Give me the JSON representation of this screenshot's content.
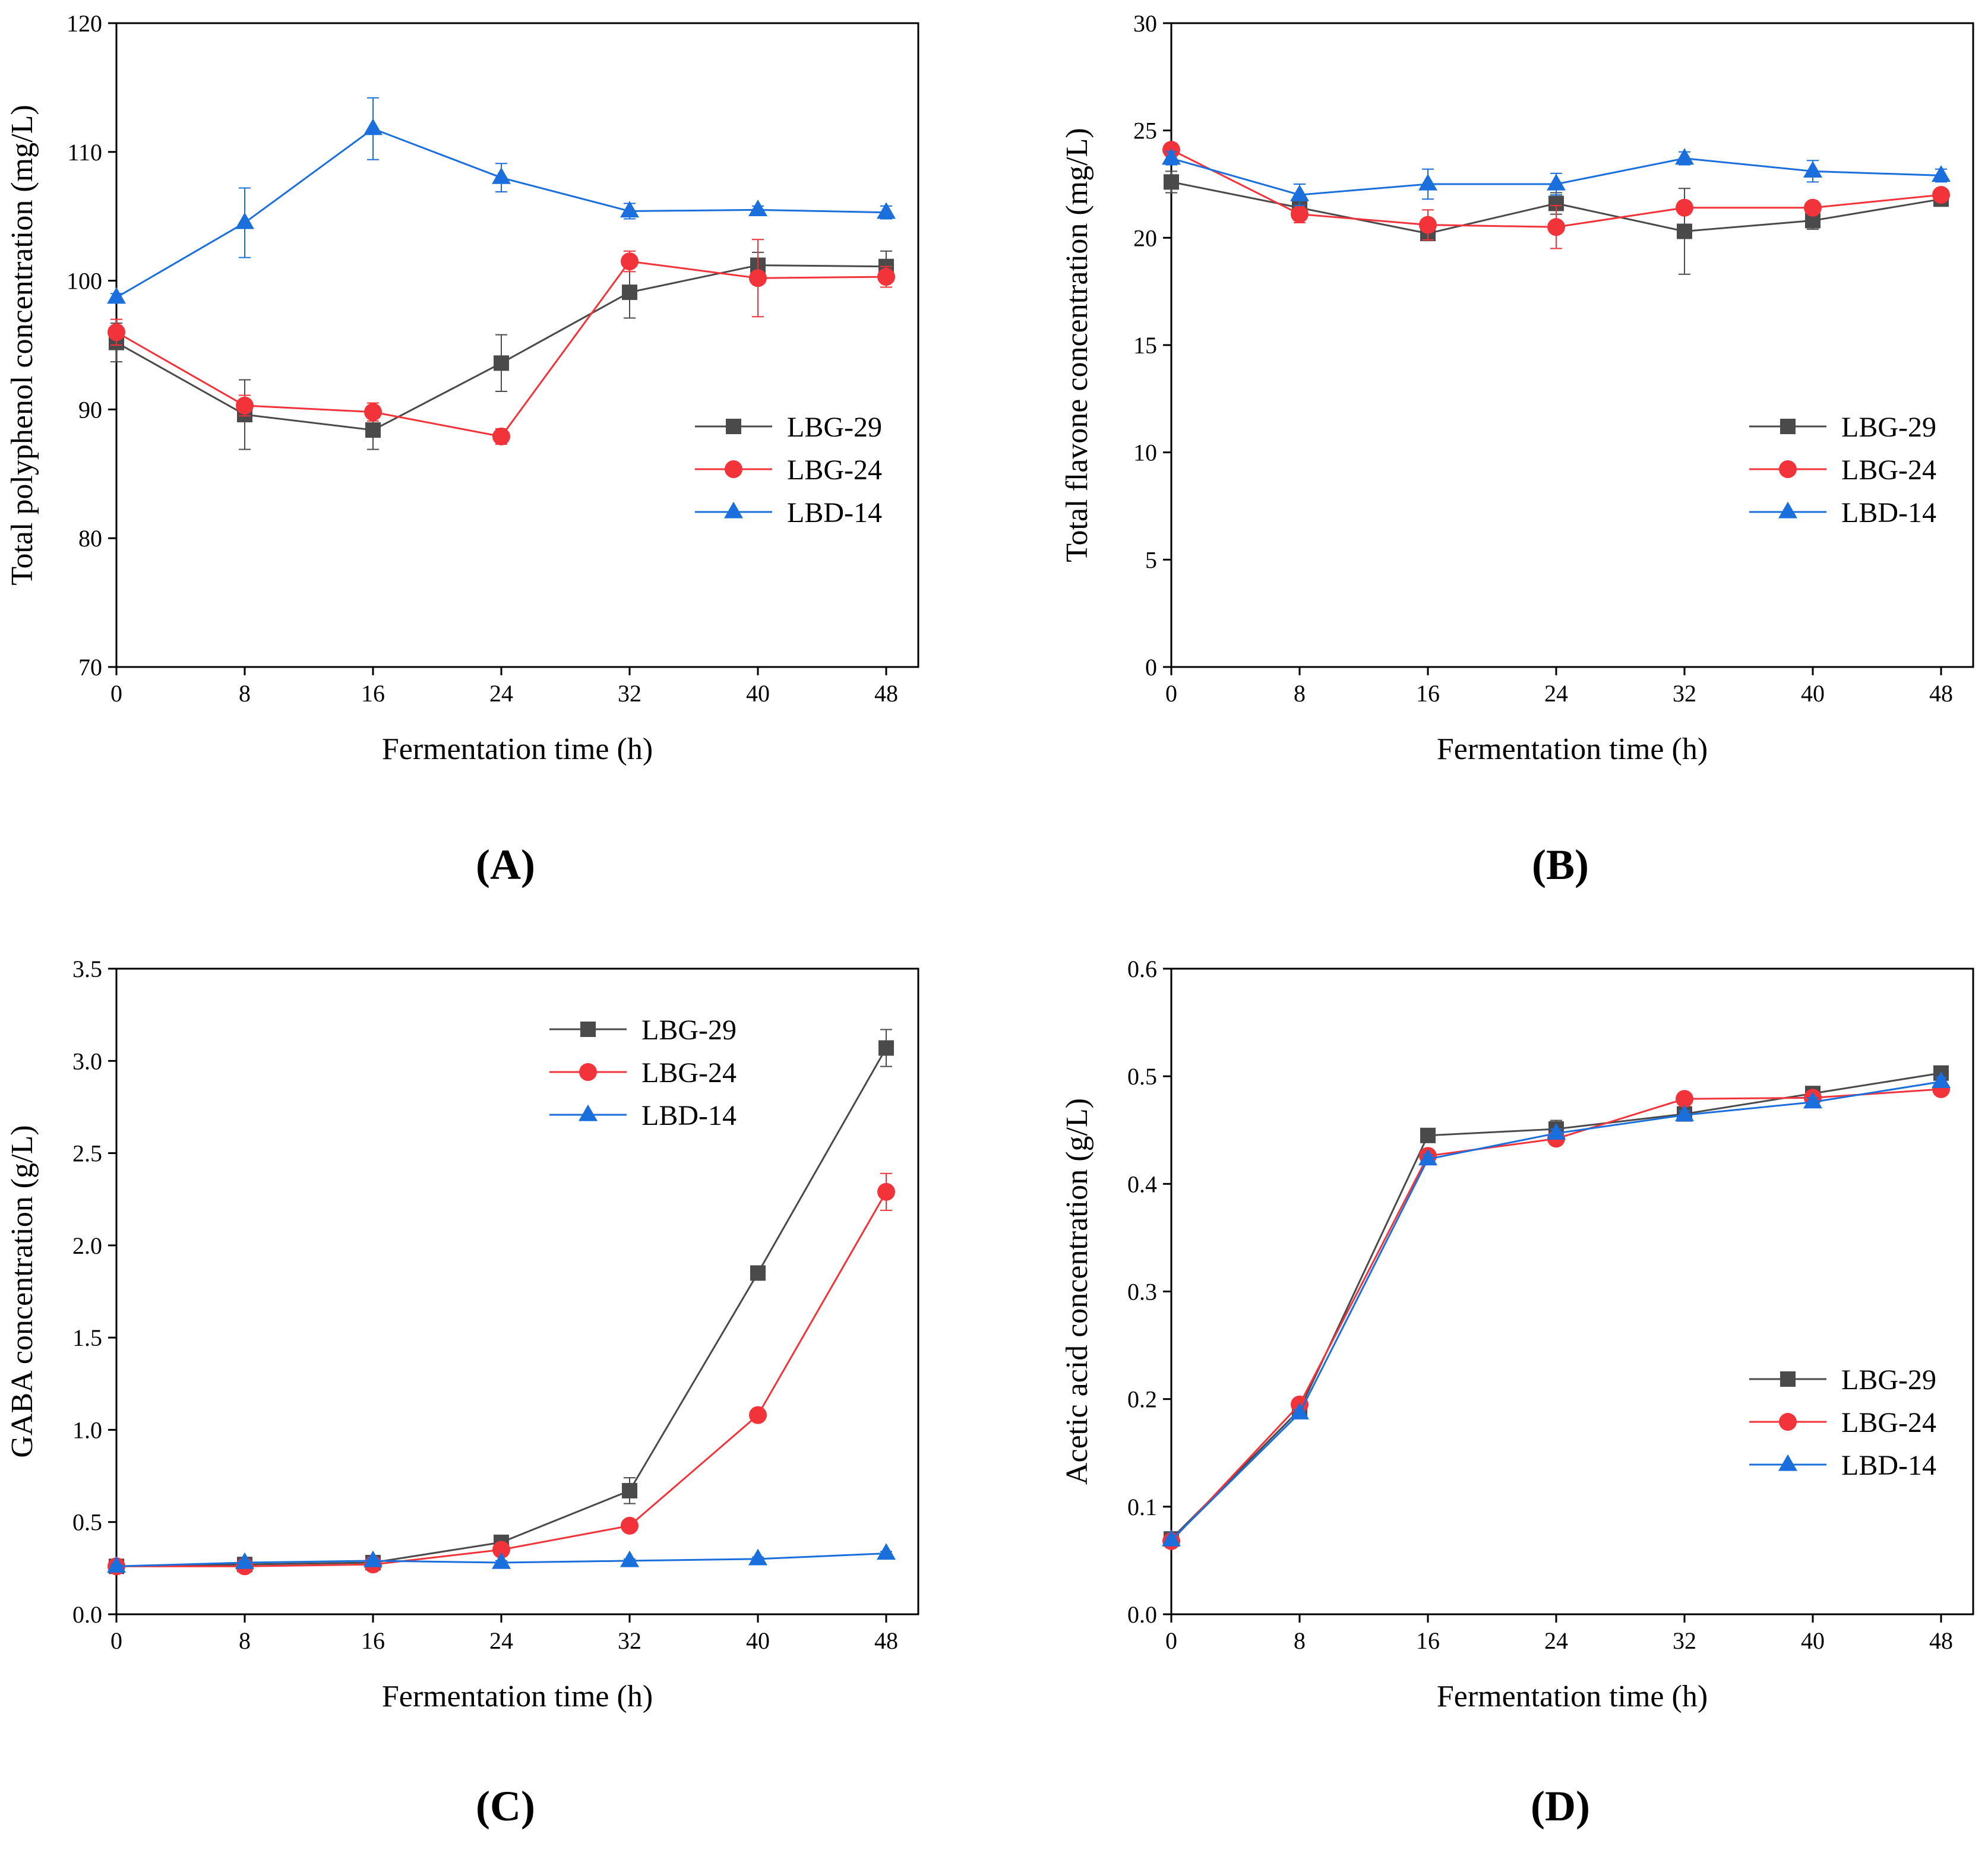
{
  "colors": {
    "LBG-29": "#4a4a4a",
    "LBG-24": "#f2333a",
    "LBD-14": "#1a6fdc",
    "axis": "#000000"
  },
  "chart_data": [
    {
      "panel": "(A)",
      "type": "line",
      "x": [
        0,
        8,
        16,
        24,
        32,
        40,
        48
      ],
      "xticks": [
        "0",
        "8",
        "16",
        "24",
        "32",
        "40",
        "48"
      ],
      "xlim": [
        0,
        50
      ],
      "ylim": [
        70,
        120
      ],
      "yticks": [
        70,
        80,
        90,
        100,
        110,
        120
      ],
      "xlabel": "Fermentation time (h)",
      "ylabel": "Total polyphenol concentration (mg/L)",
      "legend": "right",
      "series": [
        {
          "name": "LBG-29",
          "marker": "square",
          "values": [
            95.2,
            89.6,
            88.4,
            93.6,
            99.1,
            101.2,
            101.1
          ],
          "errors": [
            1.5,
            2.7,
            1.5,
            2.2,
            2.0,
            1.0,
            1.2
          ]
        },
        {
          "name": "LBG-24",
          "marker": "circle",
          "values": [
            96.0,
            90.3,
            89.8,
            87.9,
            101.5,
            100.2,
            100.3
          ],
          "errors": [
            1.0,
            0.8,
            0.7,
            0.6,
            0.8,
            3.0,
            0.8
          ]
        },
        {
          "name": "LBD-14",
          "marker": "triangle",
          "values": [
            98.7,
            104.5,
            111.8,
            108.0,
            105.4,
            105.5,
            105.3
          ],
          "errors": [
            0.3,
            2.7,
            2.4,
            1.1,
            0.6,
            0.3,
            0.5
          ]
        }
      ]
    },
    {
      "panel": "(B)",
      "type": "line",
      "x": [
        0,
        8,
        16,
        24,
        32,
        40,
        48
      ],
      "xticks": [
        "0",
        "8",
        "16",
        "24",
        "32",
        "40",
        "48"
      ],
      "xlim": [
        0,
        50
      ],
      "ylim": [
        0,
        30
      ],
      "yticks": [
        0,
        5,
        10,
        15,
        20,
        25,
        30
      ],
      "xlabel": "Fermentation time (h)",
      "ylabel": "Total flavone concentration (mg/L)",
      "legend": "right",
      "series": [
        {
          "name": "LBG-29",
          "marker": "square",
          "values": [
            22.6,
            21.4,
            20.2,
            21.6,
            20.3,
            20.8,
            21.8
          ],
          "errors": [
            0.5,
            0.5,
            0.3,
            0.5,
            2.0,
            0.4,
            0.2
          ]
        },
        {
          "name": "LBG-24",
          "marker": "circle",
          "values": [
            24.1,
            21.1,
            20.6,
            20.5,
            21.4,
            21.4,
            22.0
          ],
          "errors": [
            0.3,
            0.4,
            0.7,
            1.0,
            0.3,
            0.2,
            0.2
          ]
        },
        {
          "name": "LBD-14",
          "marker": "triangle",
          "values": [
            23.7,
            22.0,
            22.5,
            22.5,
            23.7,
            23.1,
            22.9
          ],
          "errors": [
            0.3,
            0.5,
            0.7,
            0.5,
            0.3,
            0.5,
            0.3
          ]
        }
      ]
    },
    {
      "panel": "(C)",
      "type": "line",
      "x": [
        0,
        8,
        16,
        24,
        32,
        40,
        48
      ],
      "xticks": [
        "0",
        "8",
        "16",
        "24",
        "32",
        "40",
        "48"
      ],
      "xlim": [
        0,
        50
      ],
      "ylim": [
        0,
        3.5
      ],
      "yticks": [
        0.0,
        0.5,
        1.0,
        1.5,
        2.0,
        2.5,
        3.0,
        3.5
      ],
      "yticklabels": [
        "0.0",
        "0.5",
        "1.0",
        "1.5",
        "2.0",
        "2.5",
        "3.0",
        "3.5"
      ],
      "xlabel": "Fermentation time (h)",
      "ylabel": "GABA concentration (g/L)",
      "legend": "top-right",
      "series": [
        {
          "name": "LBG-29",
          "marker": "square",
          "values": [
            0.26,
            0.27,
            0.28,
            0.39,
            0.67,
            1.85,
            3.07
          ],
          "errors": [
            0.01,
            0.01,
            0.01,
            0.02,
            0.07,
            0.02,
            0.1
          ]
        },
        {
          "name": "LBG-24",
          "marker": "circle",
          "values": [
            0.26,
            0.26,
            0.27,
            0.35,
            0.48,
            1.08,
            2.29
          ],
          "errors": [
            0.01,
            0.01,
            0.01,
            0.01,
            0.02,
            0.03,
            0.1
          ]
        },
        {
          "name": "LBD-14",
          "marker": "triangle",
          "values": [
            0.26,
            0.28,
            0.29,
            0.28,
            0.29,
            0.3,
            0.33
          ],
          "errors": [
            0.01,
            0.01,
            0.01,
            0.01,
            0.01,
            0.01,
            0.01
          ]
        }
      ]
    },
    {
      "panel": "(D)",
      "type": "line",
      "x": [
        0,
        8,
        16,
        24,
        32,
        40,
        48
      ],
      "xticks": [
        "0",
        "8",
        "16",
        "24",
        "32",
        "40",
        "48"
      ],
      "xlim": [
        0,
        50
      ],
      "ylim": [
        0,
        0.6
      ],
      "yticks": [
        0.0,
        0.1,
        0.2,
        0.3,
        0.4,
        0.5,
        0.6
      ],
      "yticklabels": [
        "0.0",
        "0.1",
        "0.2",
        "0.3",
        "0.4",
        "0.5",
        "0.6"
      ],
      "xlabel": "Fermentation time (h)",
      "ylabel": "Acetic acid concentration (g/L)",
      "legend": "bottom-right",
      "series": [
        {
          "name": "LBG-29",
          "marker": "square",
          "values": [
            0.07,
            0.19,
            0.445,
            0.451,
            0.465,
            0.484,
            0.503
          ],
          "errors": [
            0.002,
            0.003,
            0.004,
            0.008,
            0.004,
            0.004,
            0.004
          ]
        },
        {
          "name": "LBG-24",
          "marker": "circle",
          "values": [
            0.068,
            0.195,
            0.426,
            0.442,
            0.479,
            0.48,
            0.488
          ],
          "errors": [
            0.002,
            0.003,
            0.004,
            0.004,
            0.004,
            0.004,
            0.004
          ]
        },
        {
          "name": "LBD-14",
          "marker": "triangle",
          "values": [
            0.069,
            0.187,
            0.423,
            0.447,
            0.464,
            0.476,
            0.495
          ],
          "errors": [
            0.002,
            0.003,
            0.004,
            0.004,
            0.004,
            0.004,
            0.004
          ]
        }
      ]
    }
  ]
}
